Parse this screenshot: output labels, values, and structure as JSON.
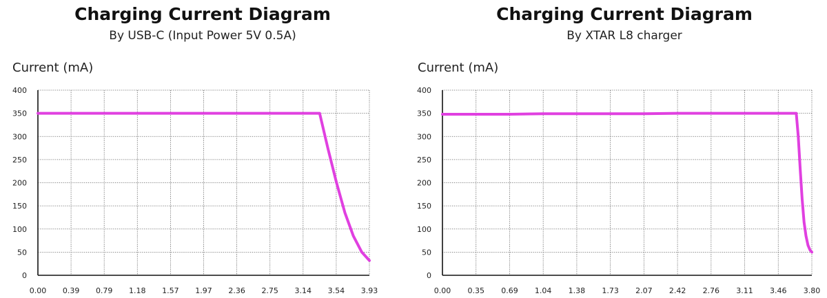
{
  "chart_data": [
    {
      "type": "line",
      "title": "Charging Current Diagram",
      "subtitle": "By USB-C (Input Power 5V 0.5A)",
      "ylabel": "Current (mA)",
      "xlabel": "",
      "ylim": [
        0,
        400
      ],
      "yticks": [
        "0",
        "50",
        "100",
        "150",
        "200",
        "250",
        "300",
        "350",
        "400"
      ],
      "xticks": [
        "0.00",
        "0.39",
        "0.79",
        "1.18",
        "1.57",
        "1.97",
        "2.36",
        "2.75",
        "3.14",
        "3.54",
        "3.93"
      ],
      "grid": true,
      "line_color": "#e040e0",
      "series": [
        {
          "x": [
            0,
            0.39,
            0.79,
            1.18,
            1.57,
            1.97,
            2.36,
            2.75,
            3.14,
            3.34,
            3.44,
            3.54,
            3.64,
            3.74,
            3.84,
            3.93
          ],
          "values": [
            350,
            350,
            350,
            350,
            350,
            350,
            350,
            350,
            350,
            350,
            273,
            200,
            135,
            85,
            50,
            32
          ]
        }
      ]
    },
    {
      "type": "line",
      "title": "Charging Current Diagram",
      "subtitle": "By XTAR L8 charger",
      "ylabel": "Current (mA)",
      "xlabel": "",
      "ylim": [
        0,
        400
      ],
      "yticks": [
        "0",
        "50",
        "100",
        "150",
        "200",
        "250",
        "300",
        "350",
        "400"
      ],
      "xticks": [
        "0.00",
        "0.35",
        "0.69",
        "1.04",
        "1.38",
        "1.73",
        "2.07",
        "2.42",
        "2.76",
        "3.11",
        "3.46",
        "3.80"
      ],
      "grid": true,
      "line_color": "#e040e0",
      "series": [
        {
          "x": [
            0,
            0.35,
            0.69,
            1.04,
            1.38,
            1.73,
            2.07,
            2.42,
            2.76,
            3.11,
            3.46,
            3.64,
            3.66,
            3.68,
            3.7,
            3.72,
            3.74,
            3.76,
            3.78,
            3.8
          ],
          "values": [
            348,
            348,
            348,
            349,
            349,
            349,
            349,
            350,
            350,
            350,
            350,
            350,
            300,
            230,
            165,
            115,
            85,
            65,
            55,
            50
          ]
        }
      ]
    }
  ]
}
